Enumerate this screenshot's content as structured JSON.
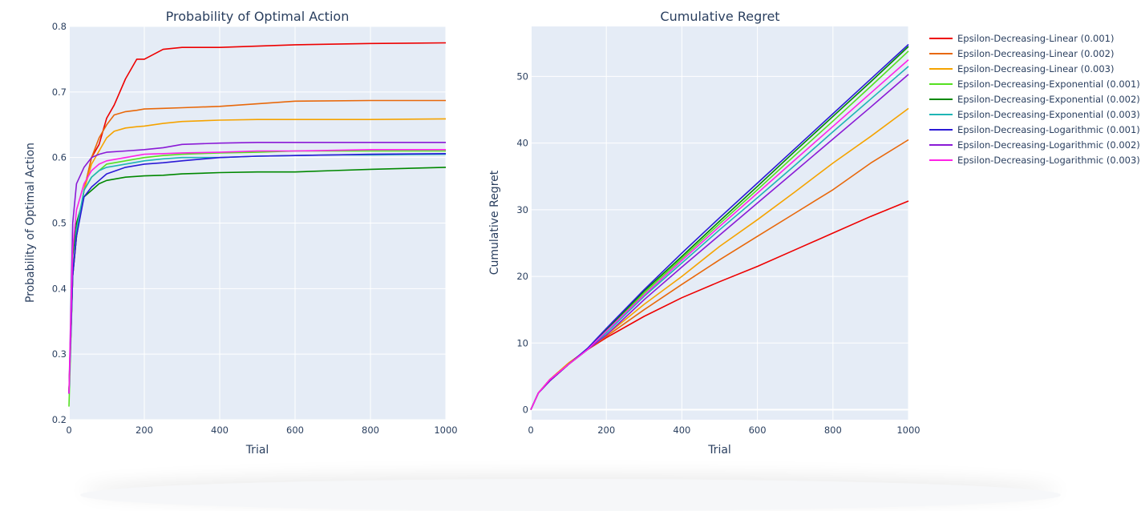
{
  "chart_data": [
    {
      "type": "line",
      "title": "Probability of Optimal Action",
      "xlabel": "Trial",
      "ylabel": "Probability of Optimal Action",
      "xlim": [
        0,
        1000
      ],
      "ylim": [
        0.2,
        0.8
      ],
      "xticks": [
        0,
        200,
        400,
        600,
        800,
        1000
      ],
      "yticks": [
        0.2,
        0.3,
        0.4,
        0.5,
        0.6,
        0.7,
        0.8
      ],
      "grid": true,
      "series": [
        {
          "name": "Epsilon-Decreasing-Linear (0.001)",
          "color": "#ee0000",
          "x": [
            0,
            10,
            20,
            40,
            60,
            80,
            100,
            120,
            150,
            180,
            200,
            250,
            300,
            400,
            500,
            600,
            800,
            1000
          ],
          "y": [
            0.24,
            0.42,
            0.48,
            0.55,
            0.6,
            0.62,
            0.66,
            0.68,
            0.72,
            0.75,
            0.75,
            0.765,
            0.768,
            0.768,
            0.77,
            0.772,
            0.774,
            0.775
          ]
        },
        {
          "name": "Epsilon-Decreasing-Linear (0.002)",
          "color": "#e8680a",
          "x": [
            0,
            10,
            20,
            40,
            60,
            80,
            100,
            120,
            150,
            180,
            200,
            250,
            300,
            400,
            500,
            600,
            800,
            1000
          ],
          "y": [
            0.24,
            0.42,
            0.48,
            0.55,
            0.6,
            0.63,
            0.65,
            0.665,
            0.67,
            0.672,
            0.674,
            0.675,
            0.676,
            0.678,
            0.682,
            0.686,
            0.687,
            0.687
          ]
        },
        {
          "name": "Epsilon-Decreasing-Linear (0.003)",
          "color": "#f5a300",
          "x": [
            0,
            10,
            20,
            40,
            60,
            80,
            100,
            120,
            150,
            180,
            200,
            250,
            300,
            400,
            500,
            600,
            800,
            1000
          ],
          "y": [
            0.24,
            0.42,
            0.48,
            0.55,
            0.59,
            0.61,
            0.63,
            0.64,
            0.645,
            0.647,
            0.648,
            0.652,
            0.655,
            0.657,
            0.658,
            0.658,
            0.658,
            0.659
          ]
        },
        {
          "name": "Epsilon-Decreasing-Exponential (0.001)",
          "color": "#55e020",
          "x": [
            0,
            10,
            20,
            40,
            60,
            80,
            100,
            150,
            200,
            250,
            300,
            400,
            500,
            600,
            700,
            800,
            1000
          ],
          "y": [
            0.22,
            0.42,
            0.48,
            0.55,
            0.57,
            0.58,
            0.59,
            0.595,
            0.6,
            0.603,
            0.605,
            0.607,
            0.608,
            0.61,
            0.61,
            0.61,
            0.61
          ]
        },
        {
          "name": "Epsilon-Decreasing-Exponential (0.002)",
          "color": "#008800",
          "x": [
            0,
            10,
            20,
            40,
            60,
            80,
            100,
            150,
            200,
            250,
            300,
            400,
            500,
            600,
            700,
            800,
            1000
          ],
          "y": [
            0.24,
            0.45,
            0.5,
            0.54,
            0.55,
            0.56,
            0.565,
            0.57,
            0.572,
            0.573,
            0.575,
            0.577,
            0.578,
            0.578,
            0.58,
            0.582,
            0.585
          ]
        },
        {
          "name": "Epsilon-Decreasing-Exponential (0.003)",
          "color": "#1fb5b5",
          "x": [
            0,
            10,
            20,
            40,
            60,
            80,
            100,
            150,
            200,
            250,
            300,
            400,
            500,
            600,
            700,
            800,
            1000
          ],
          "y": [
            0.24,
            0.42,
            0.49,
            0.55,
            0.57,
            0.58,
            0.585,
            0.59,
            0.595,
            0.598,
            0.6,
            0.6,
            0.602,
            0.603,
            0.604,
            0.604,
            0.605
          ]
        },
        {
          "name": "Epsilon-Decreasing-Logarithmic (0.001)",
          "color": "#2b1ad6",
          "x": [
            0,
            10,
            20,
            40,
            60,
            80,
            100,
            150,
            200,
            250,
            300,
            400,
            500,
            600,
            700,
            800,
            1000
          ],
          "y": [
            0.24,
            0.42,
            0.48,
            0.54,
            0.555,
            0.565,
            0.575,
            0.585,
            0.59,
            0.592,
            0.595,
            0.6,
            0.602,
            0.603,
            0.604,
            0.605,
            0.606
          ]
        },
        {
          "name": "Epsilon-Decreasing-Logarithmic (0.002)",
          "color": "#8a1ad6",
          "x": [
            0,
            10,
            20,
            40,
            60,
            80,
            100,
            150,
            200,
            250,
            300,
            400,
            500,
            600,
            700,
            800,
            1000
          ],
          "y": [
            0.24,
            0.5,
            0.56,
            0.585,
            0.6,
            0.605,
            0.608,
            0.61,
            0.612,
            0.615,
            0.62,
            0.622,
            0.623,
            0.623,
            0.623,
            0.623,
            0.623
          ]
        },
        {
          "name": "Epsilon-Decreasing-Logarithmic (0.003)",
          "color": "#ff22e6",
          "x": [
            0,
            10,
            20,
            40,
            60,
            80,
            100,
            150,
            200,
            250,
            300,
            400,
            500,
            600,
            700,
            800,
            1000
          ],
          "y": [
            0.24,
            0.46,
            0.52,
            0.56,
            0.58,
            0.59,
            0.595,
            0.6,
            0.605,
            0.606,
            0.607,
            0.608,
            0.61,
            0.61,
            0.611,
            0.612,
            0.612
          ]
        }
      ]
    },
    {
      "type": "line",
      "title": "Cumulative Regret",
      "xlabel": "Trial",
      "ylabel": "Cumulative Regret",
      "xlim": [
        0,
        1000
      ],
      "ylim": [
        -1.5,
        57.5
      ],
      "xticks": [
        0,
        200,
        400,
        600,
        800,
        1000
      ],
      "yticks": [
        0,
        10,
        20,
        30,
        40,
        50
      ],
      "grid": true,
      "legend_position": "right",
      "series": [
        {
          "name": "Epsilon-Decreasing-Linear (0.001)",
          "color": "#ee0000",
          "x": [
            0,
            20,
            50,
            100,
            150,
            200,
            300,
            400,
            500,
            600,
            700,
            800,
            900,
            1000
          ],
          "y": [
            0,
            2.5,
            4.5,
            7,
            9,
            10.8,
            14,
            16.8,
            19.2,
            21.5,
            24,
            26.5,
            29,
            31.3
          ]
        },
        {
          "name": "Epsilon-Decreasing-Linear (0.002)",
          "color": "#e8680a",
          "x": [
            0,
            20,
            50,
            100,
            150,
            200,
            300,
            400,
            500,
            600,
            700,
            800,
            900,
            1000
          ],
          "y": [
            0,
            2.5,
            4.5,
            7,
            9,
            11,
            15,
            18.8,
            22.5,
            26,
            29.5,
            33,
            37,
            40.5
          ]
        },
        {
          "name": "Epsilon-Decreasing-Linear (0.003)",
          "color": "#f5a300",
          "x": [
            0,
            20,
            50,
            100,
            150,
            200,
            300,
            400,
            500,
            600,
            700,
            800,
            900,
            1000
          ],
          "y": [
            0,
            2.5,
            4.5,
            7,
            9,
            11.2,
            15.8,
            20,
            24.5,
            28.5,
            32.7,
            37,
            41,
            45.2
          ]
        },
        {
          "name": "Epsilon-Decreasing-Exponential (0.001)",
          "color": "#55e020",
          "x": [
            0,
            20,
            50,
            100,
            150,
            200,
            300,
            400,
            500,
            600,
            700,
            800,
            900,
            1000
          ],
          "y": [
            0,
            2.5,
            4.3,
            6.8,
            9,
            11.8,
            17.5,
            22.7,
            27.9,
            33,
            38.2,
            43.3,
            48.5,
            53.8
          ]
        },
        {
          "name": "Epsilon-Decreasing-Exponential (0.002)",
          "color": "#008800",
          "x": [
            0,
            20,
            50,
            100,
            150,
            200,
            300,
            400,
            500,
            600,
            700,
            800,
            900,
            1000
          ],
          "y": [
            0,
            2.5,
            4.3,
            6.8,
            9,
            12,
            17.8,
            23,
            28.3,
            33.5,
            38.8,
            44,
            49.2,
            54.5
          ]
        },
        {
          "name": "Epsilon-Decreasing-Exponential (0.003)",
          "color": "#1fb5b5",
          "x": [
            0,
            20,
            50,
            100,
            150,
            200,
            300,
            400,
            500,
            600,
            700,
            800,
            900,
            1000
          ],
          "y": [
            0,
            2.5,
            4.3,
            6.8,
            9,
            11.5,
            17,
            22,
            27,
            31.8,
            36.7,
            41.7,
            46.6,
            51.5
          ]
        },
        {
          "name": "Epsilon-Decreasing-Logarithmic (0.001)",
          "color": "#2b1ad6",
          "x": [
            0,
            20,
            50,
            100,
            150,
            200,
            300,
            400,
            500,
            600,
            700,
            800,
            900,
            1000
          ],
          "y": [
            0,
            2.5,
            4.3,
            6.8,
            9.2,
            12.2,
            18,
            23.5,
            28.8,
            34,
            39.2,
            44.4,
            49.6,
            54.8
          ]
        },
        {
          "name": "Epsilon-Decreasing-Logarithmic (0.002)",
          "color": "#8a1ad6",
          "x": [
            0,
            20,
            50,
            100,
            150,
            200,
            300,
            400,
            500,
            600,
            700,
            800,
            900,
            1000
          ],
          "y": [
            0,
            2.5,
            4.3,
            6.8,
            9,
            11.2,
            16.5,
            21.4,
            26.2,
            31,
            35.8,
            40.6,
            45.4,
            50.3
          ]
        },
        {
          "name": "Epsilon-Decreasing-Logarithmic (0.003)",
          "color": "#ff22e6",
          "x": [
            0,
            20,
            50,
            100,
            150,
            200,
            300,
            400,
            500,
            600,
            700,
            800,
            900,
            1000
          ],
          "y": [
            0,
            2.5,
            4.5,
            6.8,
            9,
            11.8,
            17.2,
            22.4,
            27.5,
            32.5,
            37.5,
            42.5,
            47.5,
            52.5
          ]
        }
      ]
    }
  ]
}
